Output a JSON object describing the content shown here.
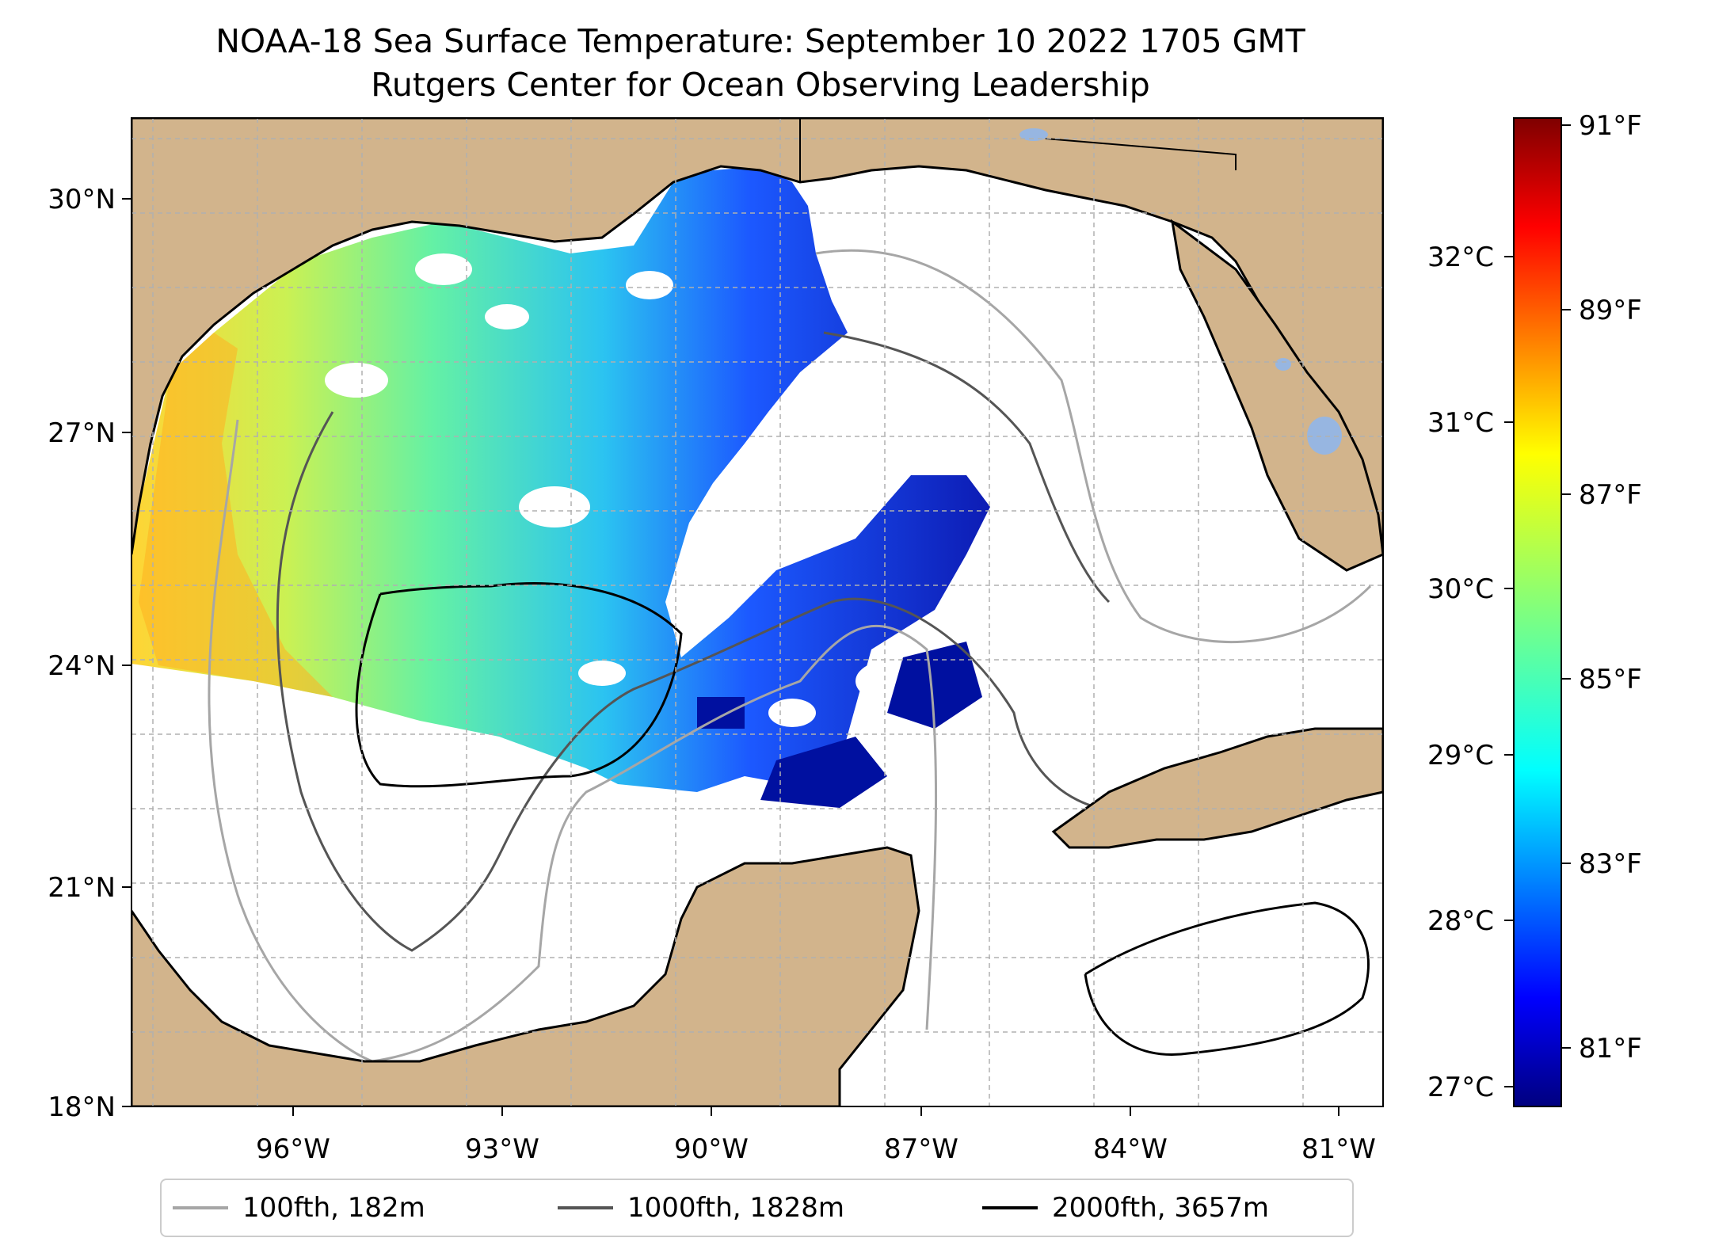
{
  "title": "NOAA-18 Sea Surface Temperature: September 10 2022 1705 GMT",
  "subtitle": "Rutgers Center for Ocean Observing Leadership",
  "map": {
    "lon_range": [
      -98.0,
      -80.0
    ],
    "lat_range": [
      18.0,
      31.0
    ],
    "grid": true,
    "lon_ticks": [
      "96°W",
      "93°W",
      "90°W",
      "87°W",
      "84°W",
      "81°W"
    ],
    "lat_ticks": [
      "18°N",
      "21°N",
      "24°N",
      "27°N",
      "30°N"
    ],
    "land_color": "#d2b48c",
    "lake_color": "#97b6e1",
    "sst_coverage": "northwest Gulf of Mexico; cooler (blue) toward the east, warmer (yellow-orange) off the Texas coast"
  },
  "colorbar": {
    "colormap": "jet",
    "celsius_ticks": [
      "32°C",
      "31°C",
      "30°C",
      "29°C",
      "28°C",
      "27°C"
    ],
    "fahrenheit_ticks": [
      "91°F",
      "89°F",
      "87°F",
      "85°F",
      "83°F",
      "81°F"
    ],
    "colors": [
      "#00007f",
      "#0000ff",
      "#007fff",
      "#00ffff",
      "#7fff7f",
      "#ffff00",
      "#ff7f00",
      "#ff0000",
      "#7f0000"
    ]
  },
  "legend": {
    "items": [
      {
        "label": "100fth, 182m",
        "color": "#a6a6a6"
      },
      {
        "label": "1000fth, 1828m",
        "color": "#555555"
      },
      {
        "label": "2000fth, 3657m",
        "color": "#000000"
      }
    ]
  }
}
